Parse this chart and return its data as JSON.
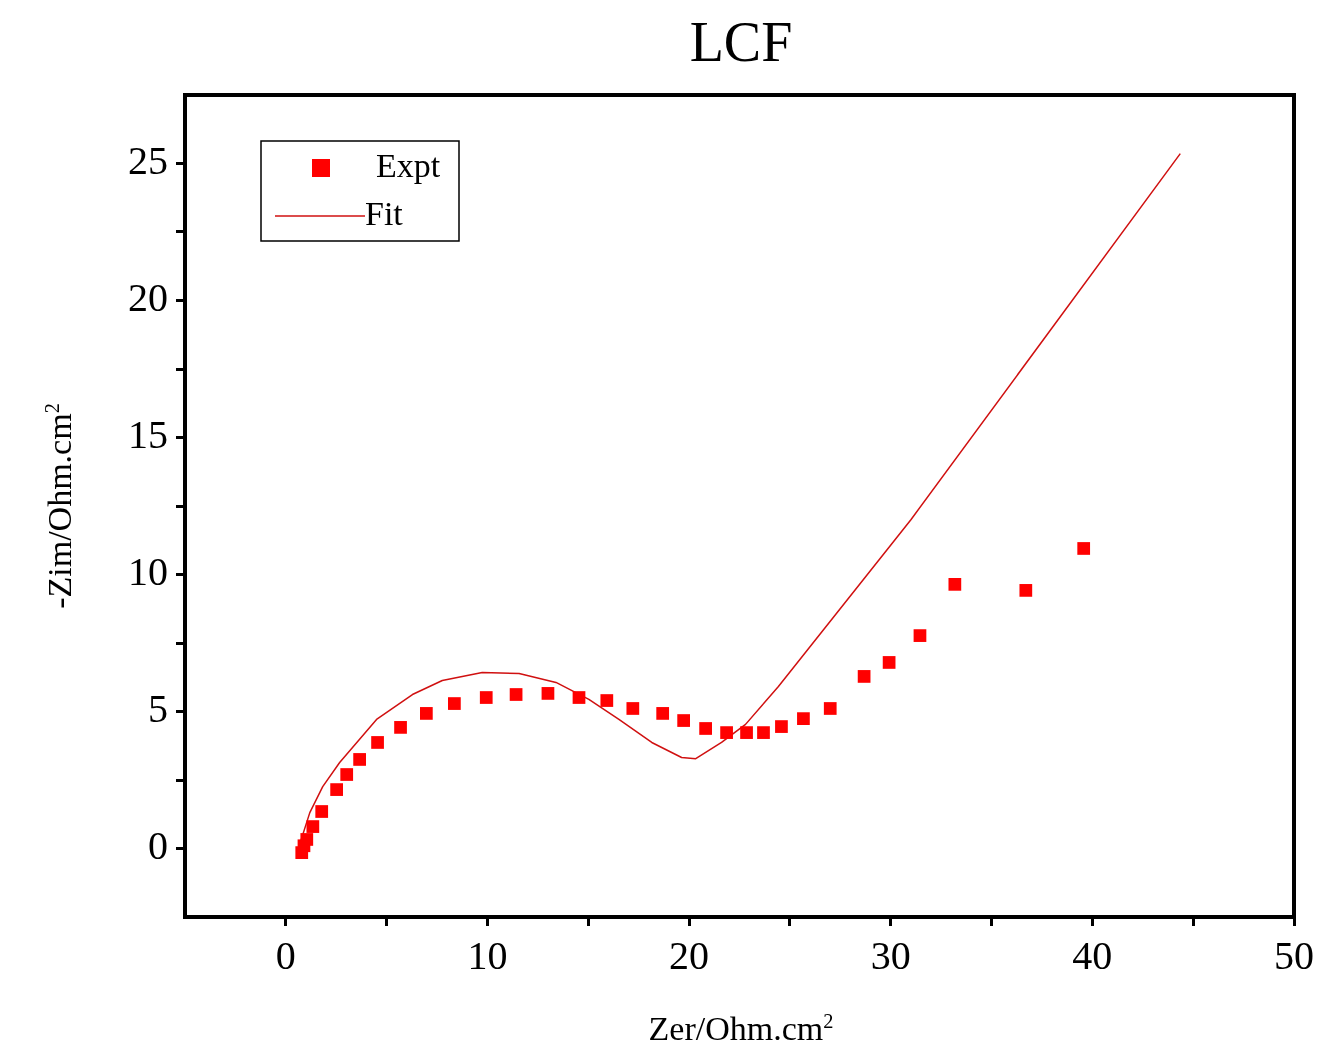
{
  "chart_data": {
    "type": "scatter",
    "title": "LCF",
    "xlabel": "Zer/Ohm.cm$^{2}$",
    "ylabel": "-Zim/Ohm.cm$^{2}$",
    "xlim": [
      -5,
      50
    ],
    "ylim": [
      -2.5,
      27.5
    ],
    "xticks": [
      0,
      {
        "value": 5,
        "label": null
      },
      10,
      {
        "value": 15,
        "label": null
      },
      20,
      {
        "value": 25,
        "label": null
      },
      30,
      {
        "value": 35,
        "label": null
      },
      40,
      {
        "value": 45,
        "label": null
      },
      50
    ],
    "yticks": [
      0,
      {
        "value": 2.5,
        "label": null
      },
      5,
      {
        "value": 7.5,
        "label": null
      },
      10,
      {
        "value": 12.5,
        "label": null
      },
      15,
      {
        "value": 17.5,
        "label": null
      },
      20,
      {
        "value": 22.5,
        "label": null
      },
      25
    ],
    "legend": "top left",
    "series": [
      {
        "name": "Expt",
        "type": "scatter",
        "color": "#ff0000",
        "marker": "square",
        "x": [
          0.79,
          0.9,
          1.04,
          1.34,
          1.78,
          2.52,
          3.02,
          3.66,
          4.55,
          5.69,
          6.97,
          8.36,
          9.94,
          11.42,
          13.0,
          14.54,
          15.92,
          17.21,
          18.69,
          19.73,
          20.82,
          21.86,
          22.85,
          23.69,
          24.58,
          25.67,
          27.0,
          28.68,
          29.92,
          31.45,
          33.18,
          36.7,
          39.57
        ],
        "values": [
          -0.15,
          0.1,
          0.33,
          0.8,
          1.35,
          2.15,
          2.7,
          3.25,
          3.87,
          4.42,
          4.93,
          5.29,
          5.51,
          5.62,
          5.66,
          5.51,
          5.4,
          5.11,
          4.93,
          4.67,
          4.38,
          4.23,
          4.23,
          4.23,
          4.45,
          4.74,
          5.11,
          6.28,
          6.79,
          7.77,
          9.64,
          9.42,
          10.95
        ]
      },
      {
        "name": "Fit",
        "type": "line",
        "color": "#d01010",
        "marker": "none",
        "x": [
          0.59,
          1.19,
          1.83,
          2.67,
          4.5,
          6.28,
          7.76,
          9.74,
          11.57,
          13.4,
          15.03,
          16.52,
          18.15,
          19.63,
          20.33,
          21.61,
          22.8,
          24.43,
          31.0,
          44.36
        ],
        "values": [
          -0.07,
          1.31,
          2.26,
          3.14,
          4.71,
          5.62,
          6.13,
          6.42,
          6.39,
          6.06,
          5.44,
          4.71,
          3.87,
          3.32,
          3.28,
          3.87,
          4.53,
          5.91,
          12.0,
          25.36
        ]
      }
    ]
  }
}
